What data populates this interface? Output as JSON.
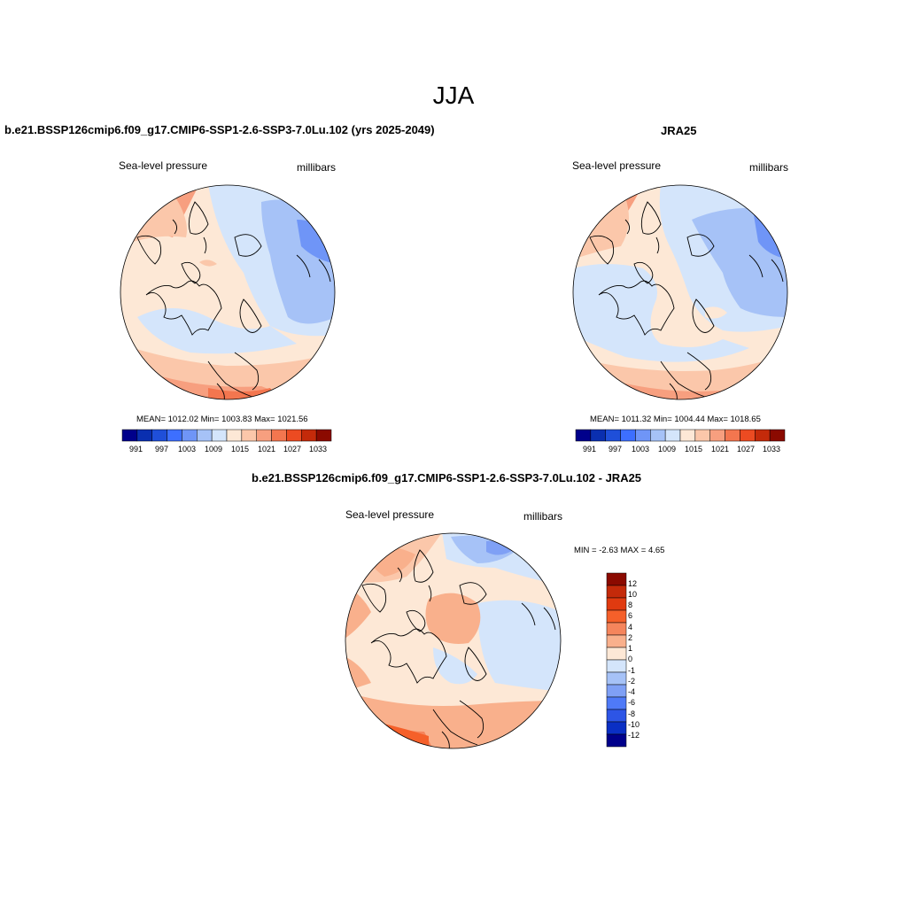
{
  "figure": {
    "title": "JJA"
  },
  "panels": [
    {
      "title": "b.e21.BSSP126cmip6.f09_g17.CMIP6-SSP1-2.6-SSP3-7.0Lu.102 (yrs 2025-2049)",
      "left_label": "Sea-level pressure",
      "right_label": "millibars",
      "stats": "MEAN= 1012.02  Min= 1003.83  Max= 1021.56",
      "colorbar_ticks": [
        "991",
        "997",
        "1003",
        "1009",
        "1015",
        "1021",
        "1027",
        "1033"
      ]
    },
    {
      "title": "JRA25",
      "left_label": "Sea-level pressure",
      "right_label": "millibars",
      "stats": "MEAN= 1011.32  Min= 1004.44  Max= 1018.65",
      "colorbar_ticks": [
        "991",
        "997",
        "1003",
        "1009",
        "1015",
        "1021",
        "1027",
        "1033"
      ]
    },
    {
      "title": "b.e21.BSSP126cmip6.f09_g17.CMIP6-SSP1-2.6-SSP3-7.0Lu.102 - JRA25",
      "left_label": "Sea-level pressure",
      "right_label": "millibars",
      "stats": "MIN =  -2.63 MAX =   4.65",
      "colorbar_ticks": [
        "12",
        "10",
        "8",
        "6",
        "4",
        "2",
        "1",
        "0",
        "-1",
        "-2",
        "-4",
        "-6",
        "-8",
        "-10",
        "-12"
      ]
    }
  ],
  "colors": {
    "abs_scale": [
      "#00008b",
      "#0a2fb0",
      "#1f4fd9",
      "#3d6fff",
      "#6f95f7",
      "#a6c2f7",
      "#d4e5fb",
      "#fde8d6",
      "#fbc7aa",
      "#f79f7f",
      "#f3764f",
      "#ec4b22",
      "#c42a0a",
      "#8b0a00"
    ],
    "diff_scale": [
      "#8b0a00",
      "#c42a0a",
      "#e03a10",
      "#f5602a",
      "#f5855c",
      "#f9b08c",
      "#fde8d6",
      "#d4e5fb",
      "#a6c2f7",
      "#7fa0f5",
      "#4f7af7",
      "#2d55e6",
      "#0a2fc4",
      "#00008b"
    ]
  }
}
